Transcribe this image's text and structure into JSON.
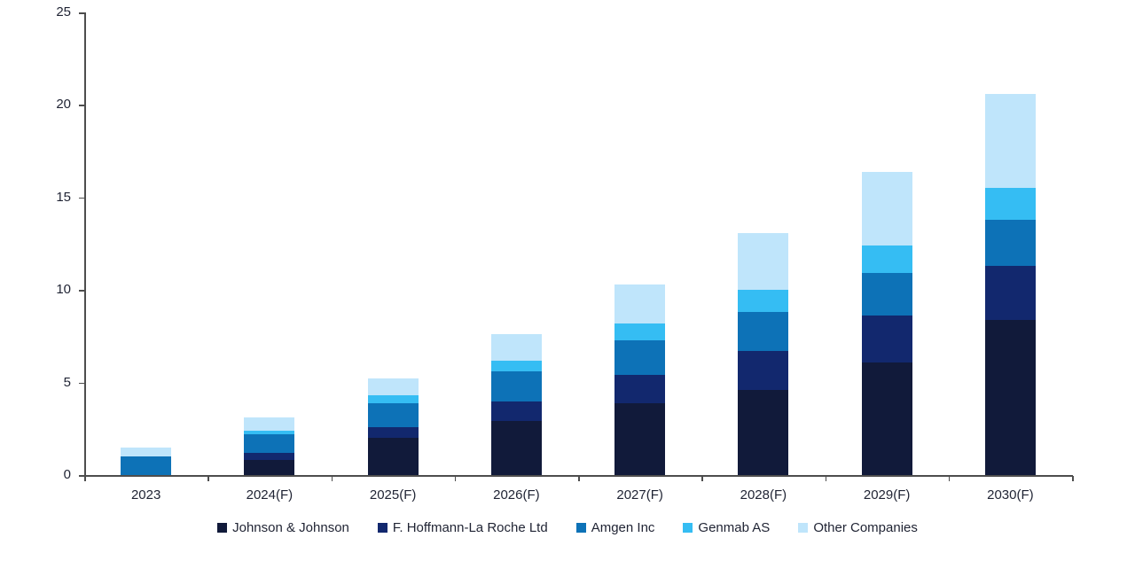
{
  "chart_data": {
    "type": "bar",
    "stacked": true,
    "title": "",
    "xlabel": "",
    "ylabel": "",
    "categories": [
      "2023",
      "2024(F)",
      "2025(F)",
      "2026(F)",
      "2027(F)",
      "2028(F)",
      "2029(F)",
      "2030(F)"
    ],
    "series": [
      {
        "name": "Johnson & Johnson",
        "color": "#111a3a",
        "values": [
          0,
          0.8,
          2.0,
          2.9,
          3.9,
          4.6,
          6.1,
          8.4
        ]
      },
      {
        "name": "F. Hoffmann-La Roche Ltd",
        "color": "#12286e",
        "values": [
          0,
          0.4,
          0.6,
          1.1,
          1.5,
          2.1,
          2.5,
          2.9
        ]
      },
      {
        "name": "Amgen Inc",
        "color": "#0d72b7",
        "values": [
          1.0,
          1.0,
          1.3,
          1.6,
          1.9,
          2.1,
          2.3,
          2.5
        ]
      },
      {
        "name": "Genmab AS",
        "color": "#35bdf3",
        "values": [
          0,
          0.2,
          0.4,
          0.6,
          0.9,
          1.2,
          1.5,
          1.7
        ]
      },
      {
        "name": "Other Companies",
        "color": "#bfe5fb",
        "values": [
          0.5,
          0.7,
          0.9,
          1.4,
          2.1,
          3.1,
          4.0,
          5.1
        ]
      }
    ],
    "totals": [
      1.5,
      3.1,
      5.2,
      7.6,
      10.3,
      13.1,
      16.4,
      20.6
    ],
    "ylim": [
      0,
      25
    ],
    "yticks": [
      0,
      5,
      10,
      15,
      20,
      25
    ],
    "grid": false,
    "legend_position": "bottom",
    "axis_color": "#4d4d4d",
    "text_color": "#1f2333"
  }
}
